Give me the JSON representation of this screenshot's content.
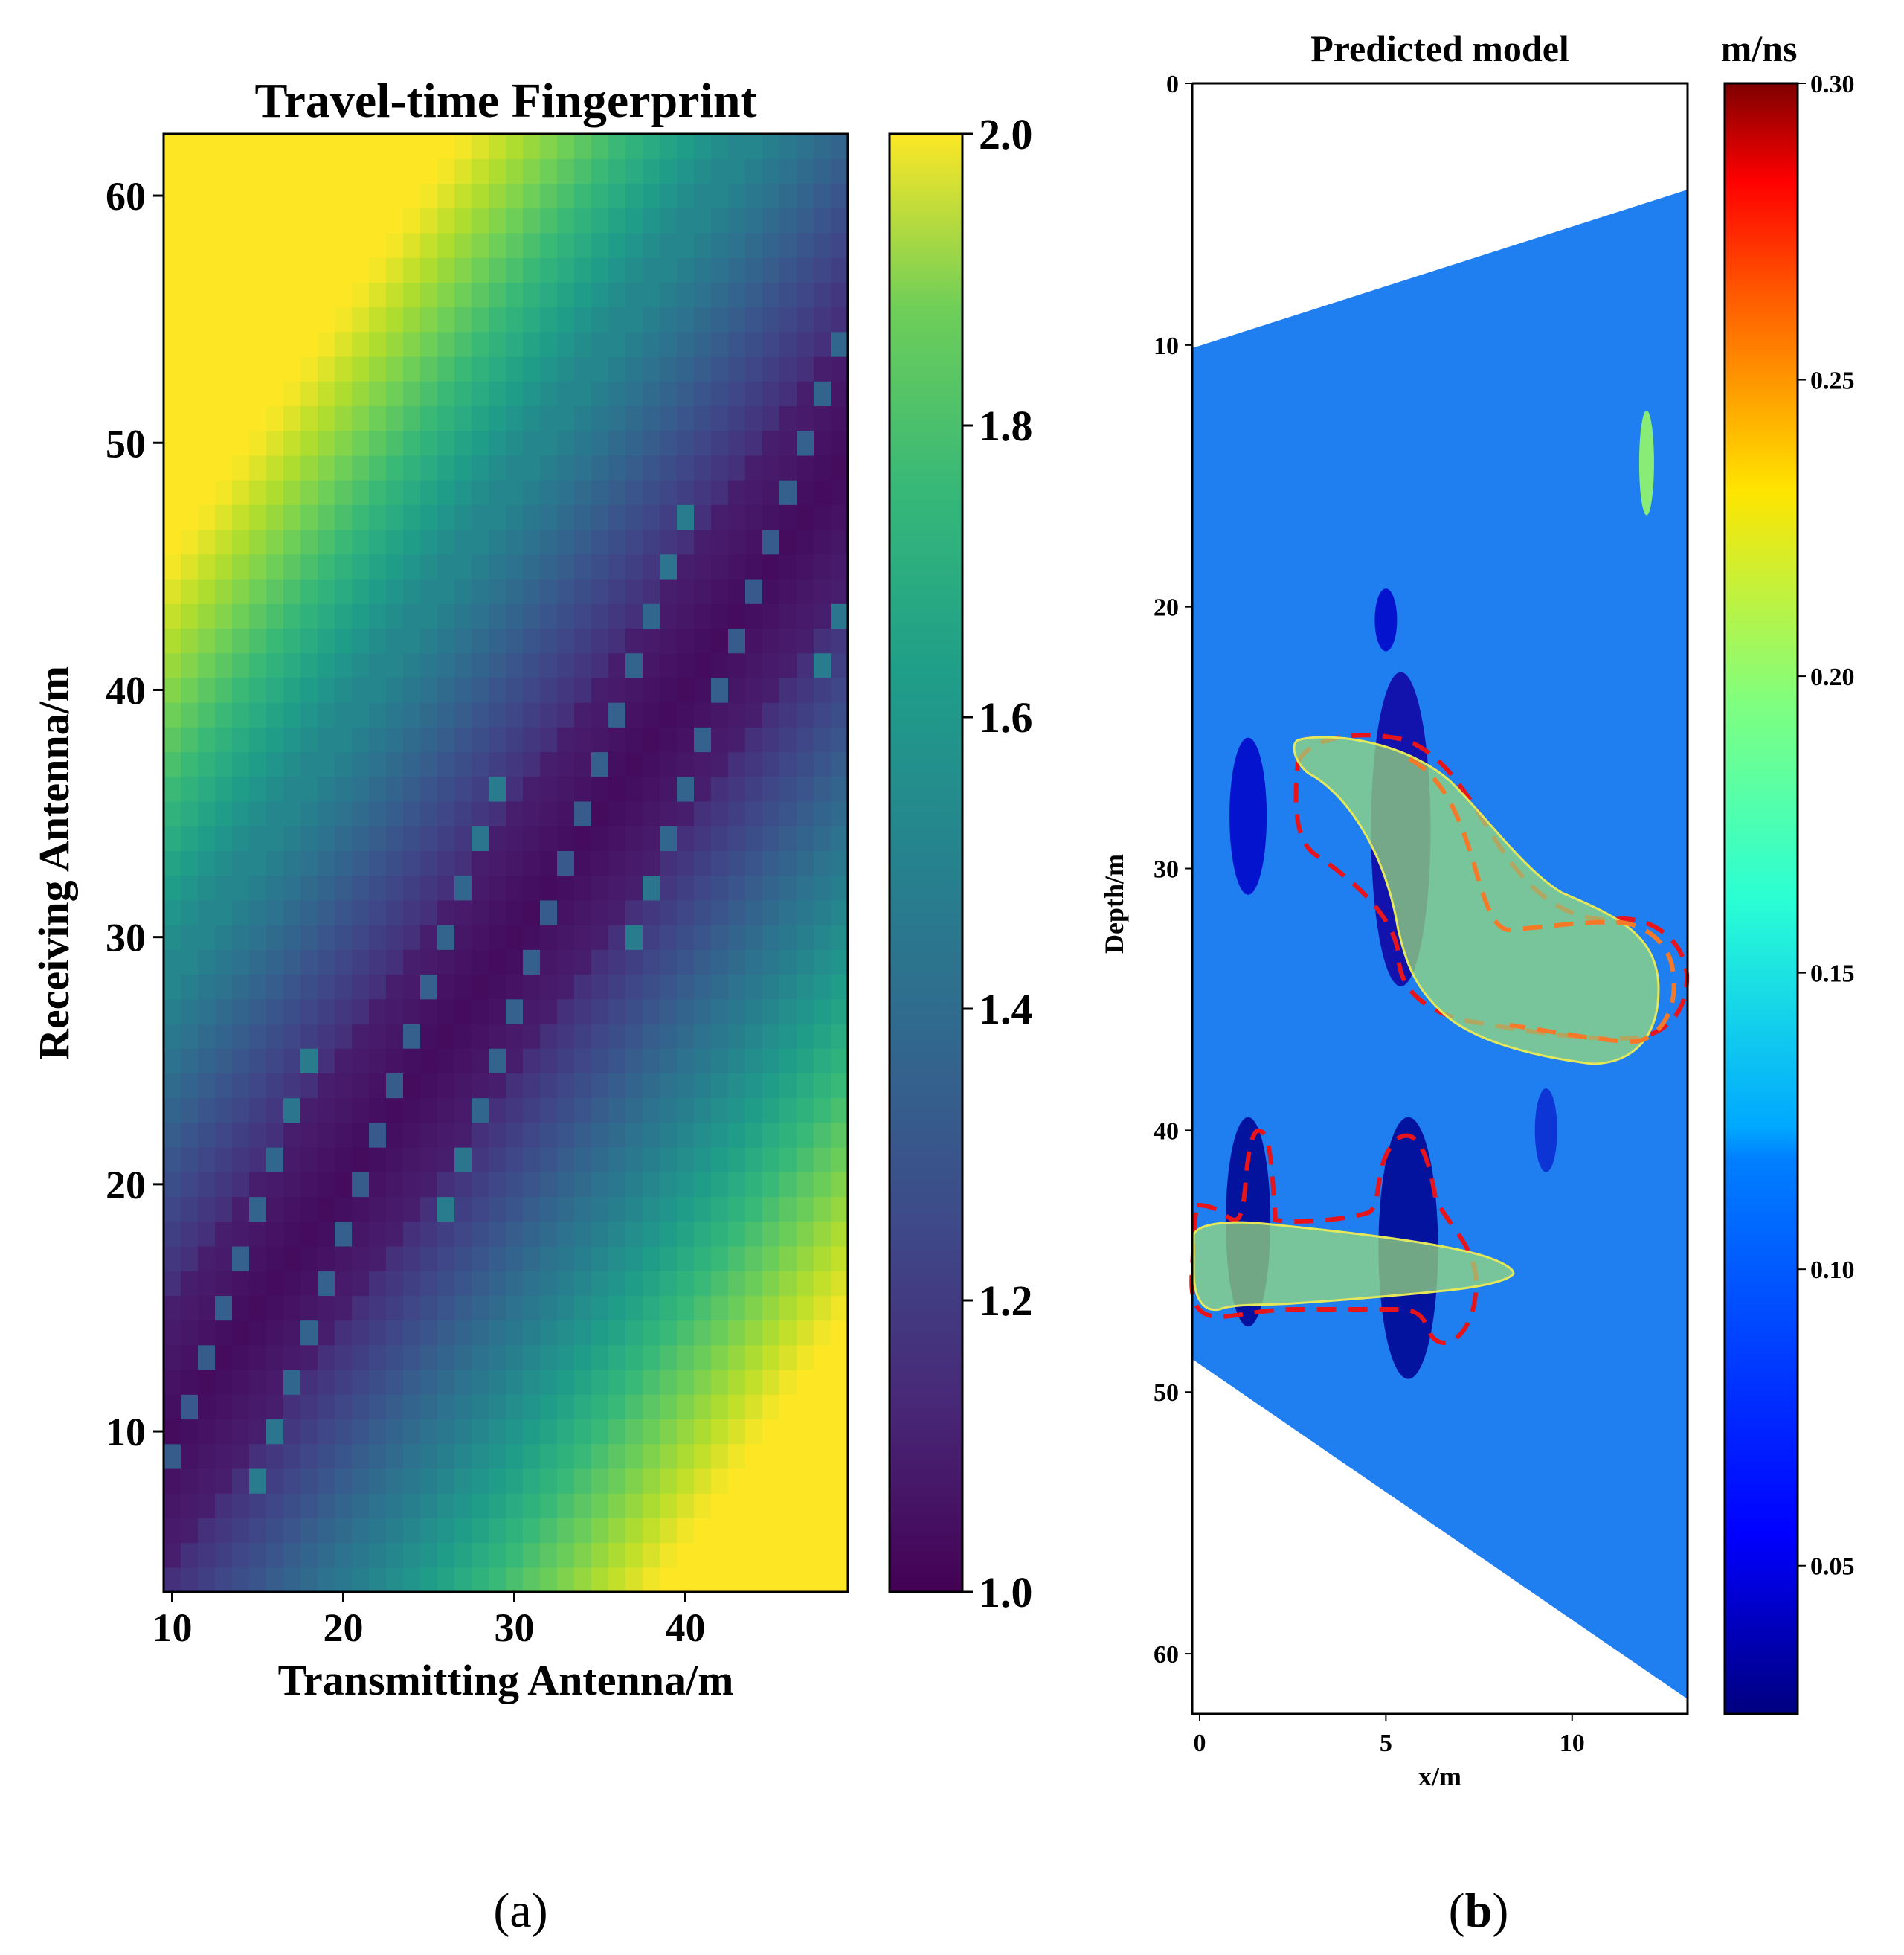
{
  "panel_a": {
    "caption_open": "(",
    "caption_letter": "a",
    "caption_close": ")"
  },
  "panel_b": {
    "caption_open": "(",
    "caption_letter": "b",
    "caption_close": ")"
  },
  "chart_data": [
    {
      "type": "heatmap",
      "title": "Travel-time Fingerprint",
      "xlabel": "Transmitting Antenna/m",
      "ylabel": "Receiving Antenna/m",
      "xlim": [
        9.5,
        49.5
      ],
      "ylim": [
        3.5,
        62.5
      ],
      "xticks": [
        10,
        20,
        30,
        40
      ],
      "yticks": [
        10,
        20,
        30,
        40,
        50,
        60
      ],
      "colorbar": {
        "min": 1.0,
        "max": 2.0,
        "ticks": [
          "1.0",
          "1.2",
          "1.4",
          "1.6",
          "1.8",
          "2.0"
        ],
        "colormap": "viridis"
      },
      "description_values": {
        "minimum_region": "band along diagonal (receiver ≈ transmitter)",
        "top_left_max": 2.0,
        "bottom_right_max": 2.0
      }
    },
    {
      "type": "heatmap",
      "title": "Predicted model",
      "xlabel": "x/m",
      "ylabel": "Depth/m",
      "xlim": [
        -0.2,
        13.1
      ],
      "ylim": [
        62.3,
        0
      ],
      "xticks": [
        0,
        5,
        10
      ],
      "yticks": [
        0,
        10,
        20,
        30,
        40,
        50,
        60
      ],
      "colorbar": {
        "label": "m/ns",
        "min": 0.025,
        "max": 0.3,
        "ticks": [
          "0.05",
          "0.10",
          "0.15",
          "0.20",
          "0.25",
          "0.30"
        ],
        "colormap": "jet"
      },
      "background_velocity": 0.1
    }
  ],
  "colors": {
    "viridis_low": "#440154",
    "viridis_high": "#fde725",
    "jet_background": "#1f7ef0",
    "annotation_red": "#e8141c",
    "annotation_orange": "#f47a2a",
    "highlight_fill": "#9be07c",
    "highlight_stroke": "#e4e85a"
  }
}
